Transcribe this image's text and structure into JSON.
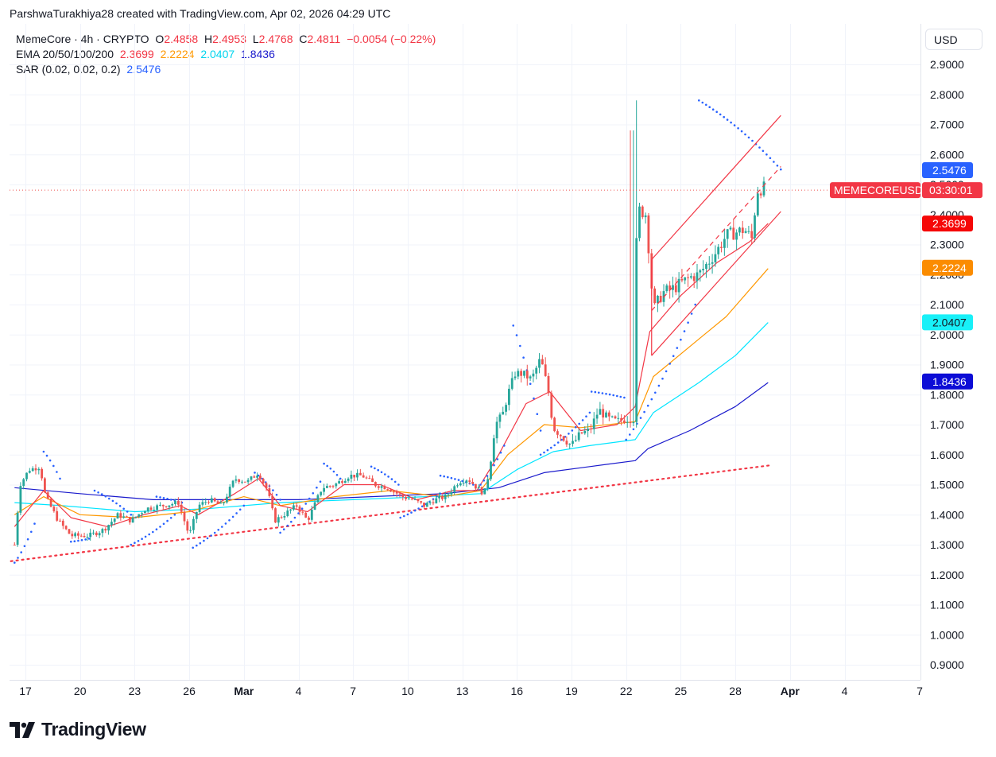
{
  "caption": "ParshwaTurakhiya28 created with TradingView.com, Apr 02, 2026 04:29 UTC",
  "legend": {
    "symbol": "MemeCore · 4h · CRYPTO",
    "o_label": "O",
    "o_value": "2.4858",
    "h_label": "H",
    "h_value": "2.4953",
    "l_label": "L",
    "l_value": "2.4768",
    "c_label": "C",
    "c_value": "2.4811",
    "change": "−0.0054 (−0.22%)",
    "ema_label": "EMA 20/50/100/200",
    "ema20": "2.3699",
    "ema50": "2.2224",
    "ema100": "2.0407",
    "ema200": "1.8436",
    "sar_label": "SAR (0.02, 0.02, 0.2)",
    "sar_value": "2.5476"
  },
  "currency": "USD",
  "logo_text": "TradingView",
  "price_tags": {
    "symbol_name": "MEMECOREUSD",
    "countdown": "03:30:01"
  },
  "colors": {
    "up": "#26a69a",
    "down": "#ef5350",
    "ema20": "#f23645",
    "ema50": "#ff9800",
    "ema100": "#00e5ff",
    "ema200": "#1a1acc",
    "sar": "#2962ff",
    "channel": "#f23645",
    "trend": "#f23645"
  },
  "chart_data": {
    "type": "candlestick",
    "title": "MemeCore · 4h · CRYPTO",
    "y_axis": {
      "ticks": [
        "2.9000",
        "2.8000",
        "2.7000",
        "2.6000",
        "2.5000",
        "2.4000",
        "2.3000",
        "2.2000",
        "2.1000",
        "2.0000",
        "1.9000",
        "1.8000",
        "1.7000",
        "1.6000",
        "1.5000",
        "1.4000",
        "1.3000",
        "1.2000",
        "1.1000",
        "1.0000",
        "0.9000"
      ],
      "ylim": [
        0.87,
        2.95
      ]
    },
    "x_axis": {
      "labels": [
        "17",
        "20",
        "23",
        "26",
        "Mar",
        "4",
        "7",
        "10",
        "13",
        "16",
        "19",
        "22",
        "25",
        "28",
        "Apr",
        "4",
        "7"
      ],
      "bold": [
        "Mar",
        "Apr"
      ],
      "xlim_days": [
        16.2,
        37.0
      ]
    },
    "last_price": 2.4811,
    "markers": [
      {
        "label": "2.5476",
        "value": 2.5476,
        "series": "SAR"
      },
      {
        "label": "2.3699",
        "value": 2.3699,
        "series": "EMA 20"
      },
      {
        "label": "2.2224",
        "value": 2.2224,
        "series": "EMA 50"
      },
      {
        "label": "2.0407",
        "value": 2.0407,
        "series": "EMA 100"
      },
      {
        "label": "1.8436",
        "value": 1.8436,
        "series": "EMA 200"
      }
    ],
    "price_path": [
      [
        16.4,
        1.3
      ],
      [
        16.7,
        1.5
      ],
      [
        17.2,
        1.55
      ],
      [
        17.8,
        1.56
      ],
      [
        18.1,
        1.46
      ],
      [
        18.8,
        1.38
      ],
      [
        19.5,
        1.33
      ],
      [
        20.5,
        1.33
      ],
      [
        21.3,
        1.35
      ],
      [
        22.1,
        1.4
      ],
      [
        22.8,
        1.38
      ],
      [
        23.6,
        1.42
      ],
      [
        24.5,
        1.43
      ],
      [
        25.4,
        1.44
      ],
      [
        26.0,
        1.33
      ],
      [
        26.5,
        1.43
      ],
      [
        27.1,
        1.45
      ],
      [
        27.8,
        1.43
      ],
      [
        28.5,
        1.52
      ],
      [
        29.2,
        1.51
      ],
      [
        29.8,
        1.54
      ],
      [
        30.3,
        1.48
      ],
      [
        30.7,
        1.38
      ],
      [
        31.2,
        1.4
      ],
      [
        31.9,
        1.43
      ],
      [
        32.5,
        1.38
      ],
      [
        33.3,
        1.49
      ],
      [
        34.0,
        1.5
      ],
      [
        34.8,
        1.53
      ],
      [
        35.5,
        1.53
      ],
      [
        36.2,
        1.5
      ],
      [
        36.9,
        1.49
      ],
      [
        37.7,
        1.46
      ],
      [
        38.3,
        1.45
      ],
      [
        38.9,
        1.43
      ],
      [
        39.5,
        1.45
      ],
      [
        40.1,
        1.46
      ],
      [
        40.8,
        1.51
      ],
      [
        41.3,
        1.52
      ],
      [
        41.8,
        1.49
      ],
      [
        42.2,
        1.47
      ],
      [
        42.5,
        1.55
      ],
      [
        42.8,
        1.7
      ],
      [
        43.2,
        1.73
      ],
      [
        43.5,
        1.8
      ],
      [
        43.9,
        1.87
      ],
      [
        44.3,
        1.87
      ],
      [
        44.8,
        1.85
      ],
      [
        45.3,
        1.92
      ],
      [
        45.7,
        1.82
      ],
      [
        46.0,
        1.69
      ],
      [
        46.5,
        1.66
      ],
      [
        47.0,
        1.63
      ],
      [
        47.5,
        1.67
      ],
      [
        48.0,
        1.68
      ],
      [
        48.5,
        1.75
      ],
      [
        49.0,
        1.72
      ],
      [
        49.5,
        1.71
      ],
      [
        50.0,
        1.72
      ],
      [
        50.4,
        1.72
      ],
      [
        50.6,
        2.42
      ],
      [
        51.1,
        2.4
      ],
      [
        51.5,
        2.08
      ],
      [
        52.0,
        2.14
      ],
      [
        52.5,
        2.15
      ],
      [
        53.0,
        2.17
      ],
      [
        53.5,
        2.19
      ],
      [
        54.0,
        2.2
      ],
      [
        54.5,
        2.24
      ],
      [
        55.0,
        2.28
      ],
      [
        55.5,
        2.33
      ],
      [
        56.0,
        2.34
      ],
      [
        56.5,
        2.35
      ],
      [
        56.9,
        2.32
      ],
      [
        57.2,
        2.48
      ],
      [
        57.6,
        2.49
      ]
    ],
    "ema20": [
      [
        16.4,
        1.36
      ],
      [
        18.0,
        1.48
      ],
      [
        19.5,
        1.39
      ],
      [
        21.5,
        1.36
      ],
      [
        23.5,
        1.4
      ],
      [
        25.5,
        1.43
      ],
      [
        26.5,
        1.4
      ],
      [
        28.5,
        1.47
      ],
      [
        29.8,
        1.52
      ],
      [
        31.0,
        1.43
      ],
      [
        32.5,
        1.41
      ],
      [
        34.5,
        1.5
      ],
      [
        36.5,
        1.5
      ],
      [
        38.5,
        1.45
      ],
      [
        40.5,
        1.48
      ],
      [
        41.8,
        1.48
      ],
      [
        43.0,
        1.6
      ],
      [
        44.5,
        1.77
      ],
      [
        45.8,
        1.81
      ],
      [
        47.5,
        1.68
      ],
      [
        49.5,
        1.7
      ],
      [
        50.5,
        1.76
      ],
      [
        51.3,
        2.01
      ],
      [
        53.0,
        2.13
      ],
      [
        55.0,
        2.24
      ],
      [
        56.8,
        2.31
      ],
      [
        57.8,
        2.37
      ]
    ],
    "ema50": [
      [
        16.4,
        1.4
      ],
      [
        18.0,
        1.46
      ],
      [
        20.0,
        1.4
      ],
      [
        23.0,
        1.39
      ],
      [
        26.0,
        1.41
      ],
      [
        29.0,
        1.46
      ],
      [
        31.0,
        1.43
      ],
      [
        34.0,
        1.46
      ],
      [
        37.0,
        1.48
      ],
      [
        40.0,
        1.46
      ],
      [
        42.0,
        1.48
      ],
      [
        43.5,
        1.6
      ],
      [
        45.5,
        1.7
      ],
      [
        47.5,
        1.69
      ],
      [
        50.5,
        1.71
      ],
      [
        51.5,
        1.86
      ],
      [
        53.5,
        1.96
      ],
      [
        55.5,
        2.06
      ],
      [
        57.8,
        2.22
      ]
    ],
    "ema100": [
      [
        16.4,
        1.44
      ],
      [
        19.0,
        1.43
      ],
      [
        23.0,
        1.41
      ],
      [
        27.0,
        1.42
      ],
      [
        31.0,
        1.44
      ],
      [
        35.0,
        1.45
      ],
      [
        39.0,
        1.46
      ],
      [
        42.0,
        1.47
      ],
      [
        44.0,
        1.55
      ],
      [
        46.0,
        1.61
      ],
      [
        48.0,
        1.63
      ],
      [
        50.5,
        1.65
      ],
      [
        51.5,
        1.74
      ],
      [
        54.0,
        1.84
      ],
      [
        56.0,
        1.93
      ],
      [
        57.8,
        2.04
      ]
    ],
    "ema200": [
      [
        16.4,
        1.49
      ],
      [
        20.0,
        1.47
      ],
      [
        24.0,
        1.45
      ],
      [
        28.0,
        1.45
      ],
      [
        32.0,
        1.45
      ],
      [
        36.0,
        1.46
      ],
      [
        40.0,
        1.47
      ],
      [
        43.0,
        1.49
      ],
      [
        45.5,
        1.54
      ],
      [
        48.0,
        1.56
      ],
      [
        50.5,
        1.58
      ],
      [
        51.2,
        1.62
      ],
      [
        53.5,
        1.68
      ],
      [
        56.0,
        1.76
      ],
      [
        57.8,
        1.84
      ]
    ],
    "sar_segments": [
      [
        [
          16.4,
          1.24
        ],
        [
          17.5,
          1.37
        ]
      ],
      [
        [
          18.0,
          1.61
        ],
        [
          18.9,
          1.52
        ]
      ],
      [
        [
          19.5,
          1.31
        ],
        [
          20.5,
          1.32
        ]
      ],
      [
        [
          20.8,
          1.48
        ],
        [
          22.8,
          1.4
        ]
      ],
      [
        [
          22.8,
          1.3
        ],
        [
          25.2,
          1.4
        ]
      ],
      [
        [
          24.2,
          1.46
        ],
        [
          25.6,
          1.44
        ]
      ],
      [
        [
          26.2,
          1.29
        ],
        [
          29.0,
          1.43
        ]
      ],
      [
        [
          29.6,
          1.54
        ],
        [
          31.0,
          1.45
        ]
      ],
      [
        [
          31.0,
          1.34
        ],
        [
          33.2,
          1.51
        ]
      ],
      [
        [
          33.4,
          1.57
        ],
        [
          34.3,
          1.52
        ]
      ],
      [
        [
          36.0,
          1.56
        ],
        [
          37.5,
          1.5
        ]
      ],
      [
        [
          37.6,
          1.39
        ],
        [
          39.8,
          1.47
        ]
      ],
      [
        [
          39.8,
          1.53
        ],
        [
          41.6,
          1.5
        ]
      ],
      [
        [
          42.0,
          1.5
        ],
        [
          43.3,
          1.63
        ]
      ],
      [
        [
          43.8,
          2.03
        ],
        [
          45.3,
          1.68
        ]
      ],
      [
        [
          45.3,
          1.6
        ],
        [
          48.0,
          1.74
        ]
      ],
      [
        [
          48.1,
          1.81
        ],
        [
          49.9,
          1.79
        ]
      ],
      [
        [
          50.0,
          1.65
        ],
        [
          53.8,
          2.1
        ]
      ],
      [
        [
          54.0,
          2.78
        ],
        [
          58.5,
          2.55
        ]
      ]
    ],
    "channel_lines": [
      {
        "style": "solid",
        "from": [
          51.4,
          2.25
        ],
        "to": [
          58.5,
          2.73
        ]
      },
      {
        "style": "dashed",
        "from": [
          51.4,
          2.08
        ],
        "to": [
          58.5,
          2.56
        ]
      },
      {
        "style": "solid",
        "from": [
          51.4,
          1.93
        ],
        "to": [
          58.5,
          2.41
        ]
      }
    ],
    "trendline": {
      "style": "dotted",
      "from": [
        16.2,
        1.245
      ],
      "to": [
        58.0,
        1.565
      ]
    }
  }
}
